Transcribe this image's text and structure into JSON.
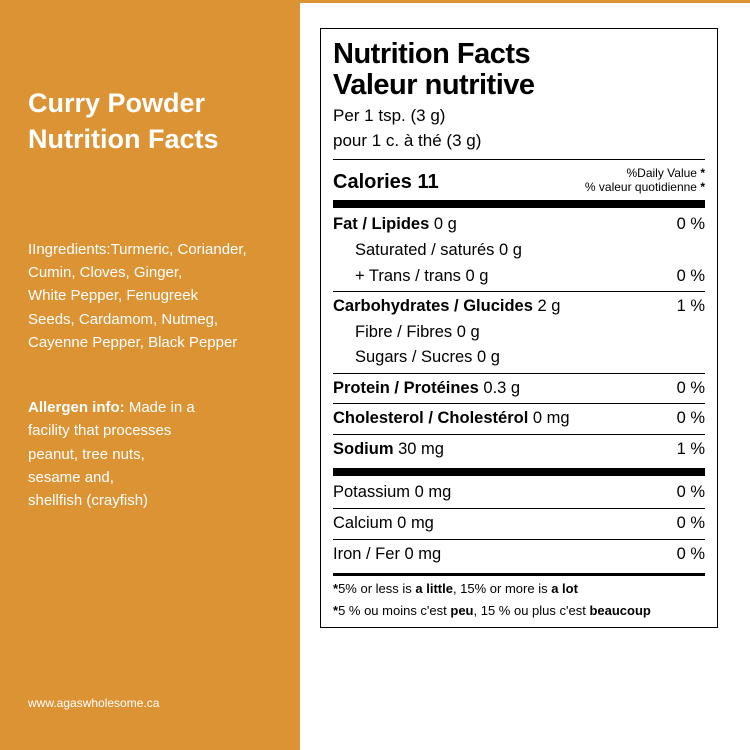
{
  "colors": {
    "panel_bg": "#db9334",
    "panel_text": "#ffffff",
    "label_border": "#000000"
  },
  "left": {
    "title_line1": "Curry Powder",
    "title_line2": "Nutrition Facts",
    "ingredients_label": "Ingredients:",
    "ingredients_text": "Turmeric, Coriander,\n Cumin, Cloves, Ginger,\n White Pepper, Fenugreek\nSeeds, Cardamom, Nutmeg,\n Cayenne Pepper, Black Pepper",
    "allergen_label": "Allergen info:",
    "allergen_text": " Made in a\nfacility that processes\n peanut, tree nuts,\nsesame and,\nshellfish (crayfish)",
    "website": "www.agaswholesome.ca"
  },
  "facts": {
    "heading_en": "Nutrition Facts",
    "heading_fr": "Valeur nutritive",
    "serving_en": "Per 1 tsp.  (3 g)",
    "serving_fr": "pour 1 c. à thé (3 g)",
    "calories_label": "Calories",
    "calories_value": "11",
    "dv_head_en": "%Daily Value",
    "dv_head_fr": "% valeur quotidienne",
    "rows": [
      {
        "label": "Fat / Lipides",
        "amount": "0 g",
        "dv": "0 %",
        "bold": true,
        "indent": false,
        "border": false
      },
      {
        "label": "Saturated / saturés",
        "amount": "0 g",
        "dv": "",
        "bold": false,
        "indent": true,
        "border": false
      },
      {
        "label": "+ Trans / trans",
        "amount": "0 g",
        "dv": "0 %",
        "bold": false,
        "indent": true,
        "border": false
      },
      {
        "label": "Carbohydrates / Glucides",
        "amount": "2 g",
        "dv": "1 %",
        "bold": true,
        "indent": false,
        "border": true
      },
      {
        "label": "Fibre / Fibres",
        "amount": "0 g",
        "dv": "",
        "bold": false,
        "indent": true,
        "border": false
      },
      {
        "label": "Sugars / Sucres",
        "amount": "0 g",
        "dv": "",
        "bold": false,
        "indent": true,
        "border": false
      },
      {
        "label": "Protein / Protéines",
        "amount": "0.3 g",
        "dv": "0 %",
        "bold": true,
        "indent": false,
        "border": true
      },
      {
        "label": "Cholesterol / Cholestérol",
        "amount": "0 mg",
        "dv": "0 %",
        "bold": true,
        "indent": false,
        "border": true
      },
      {
        "label": "Sodium",
        "amount": "30 mg",
        "dv": "1 %",
        "bold": true,
        "indent": false,
        "border": true
      }
    ],
    "minerals": [
      {
        "label": "Potassium",
        "amount": "0 mg",
        "dv": "0 %"
      },
      {
        "label": "Calcium",
        "amount": "0 mg",
        "dv": "0 %"
      },
      {
        "label": "Iron / Fer",
        "amount": "0 mg",
        "dv": "0 %"
      }
    ],
    "footnote_en_pre": "5% or less is ",
    "footnote_en_b1": "a little",
    "footnote_en_mid": ", 15% or more is ",
    "footnote_en_b2": "a lot",
    "footnote_fr_pre": "5 % ou moins c'est ",
    "footnote_fr_b1": "peu",
    "footnote_fr_mid": ", 15 % ou plus c'est ",
    "footnote_fr_b2": "beaucoup"
  }
}
